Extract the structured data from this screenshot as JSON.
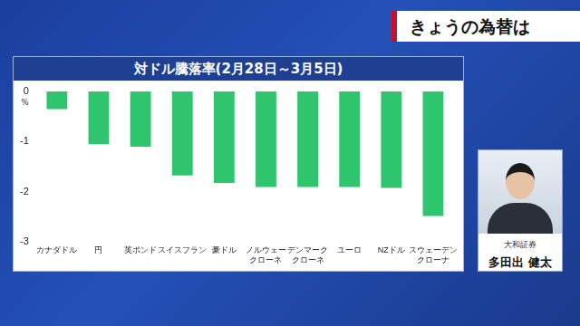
{
  "header": {
    "banner": "きょうの為替は"
  },
  "chart_data": {
    "type": "bar",
    "title": "対ドル騰落率(2月28日～3月5日)",
    "y_label": "%",
    "categories": [
      "カナダドル",
      "円",
      "英ポンド",
      "スイスフラン",
      "豪ドル",
      [
        "ノルウェー",
        "クローネ"
      ],
      [
        "デンマーク",
        "クローネ"
      ],
      "ユーロ",
      "NZドル",
      [
        "スウェーデン",
        "クローナ"
      ]
    ],
    "values": [
      -0.35,
      -1.05,
      -1.1,
      -1.67,
      -1.82,
      -1.9,
      -1.9,
      -1.9,
      -1.92,
      -2.48
    ],
    "color": "#2fc46e",
    "ylim": [
      -3,
      0
    ],
    "yticks": [
      -3,
      -2,
      -1,
      0
    ],
    "grid": false
  },
  "presenter": {
    "company": "大和証券",
    "name": "多田出 健太"
  }
}
